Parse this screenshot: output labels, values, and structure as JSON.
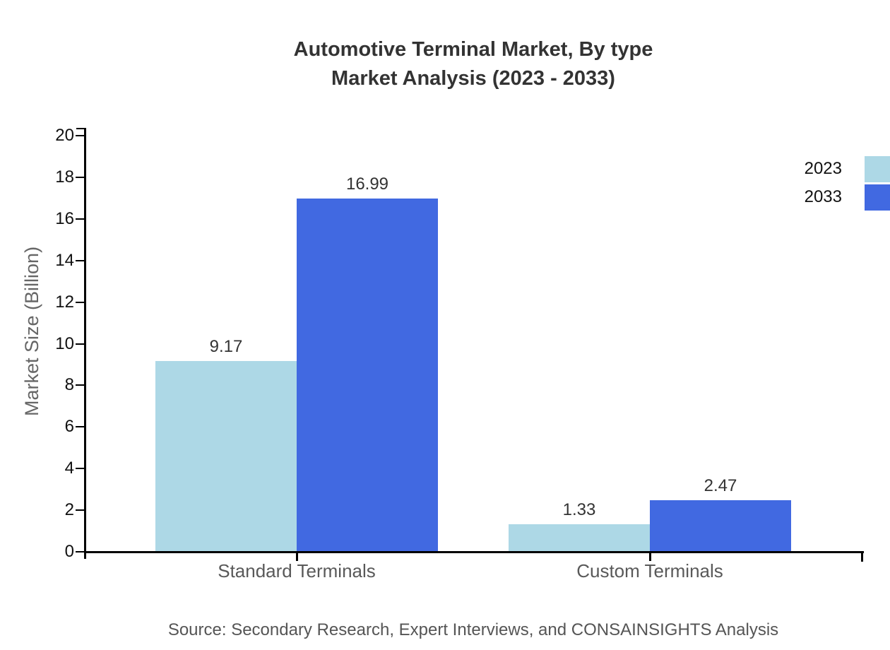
{
  "title": {
    "line1": "Automotive Terminal Market, By type",
    "line2": "Market Analysis (2023 - 2033)"
  },
  "chart_data": {
    "type": "bar",
    "categories": [
      "Standard Terminals",
      "Custom Terminals"
    ],
    "series": [
      {
        "name": "2023",
        "color": "#ADD8E6",
        "values": [
          9.17,
          1.33
        ]
      },
      {
        "name": "2033",
        "color": "#4169E1",
        "values": [
          16.99,
          2.47
        ]
      }
    ],
    "value_labels": [
      "9.17",
      "16.99",
      "1.33",
      "2.47"
    ],
    "ylabel": "Market Size (Billion)",
    "xlabel": "",
    "ylim": [
      0,
      20
    ],
    "yticks": [
      0,
      2,
      4,
      6,
      8,
      10,
      12,
      14,
      16,
      18,
      20
    ],
    "grid": false,
    "legend_position": "top-right"
  },
  "source": "Source: Secondary Research, Expert Interviews, and CONSAINSIGHTS Analysis",
  "colors": {
    "series_2023": "#ADD8E6",
    "series_2033": "#4169E1",
    "axis": "#000000",
    "title_text": "#333333",
    "muted_text": "#595959"
  }
}
